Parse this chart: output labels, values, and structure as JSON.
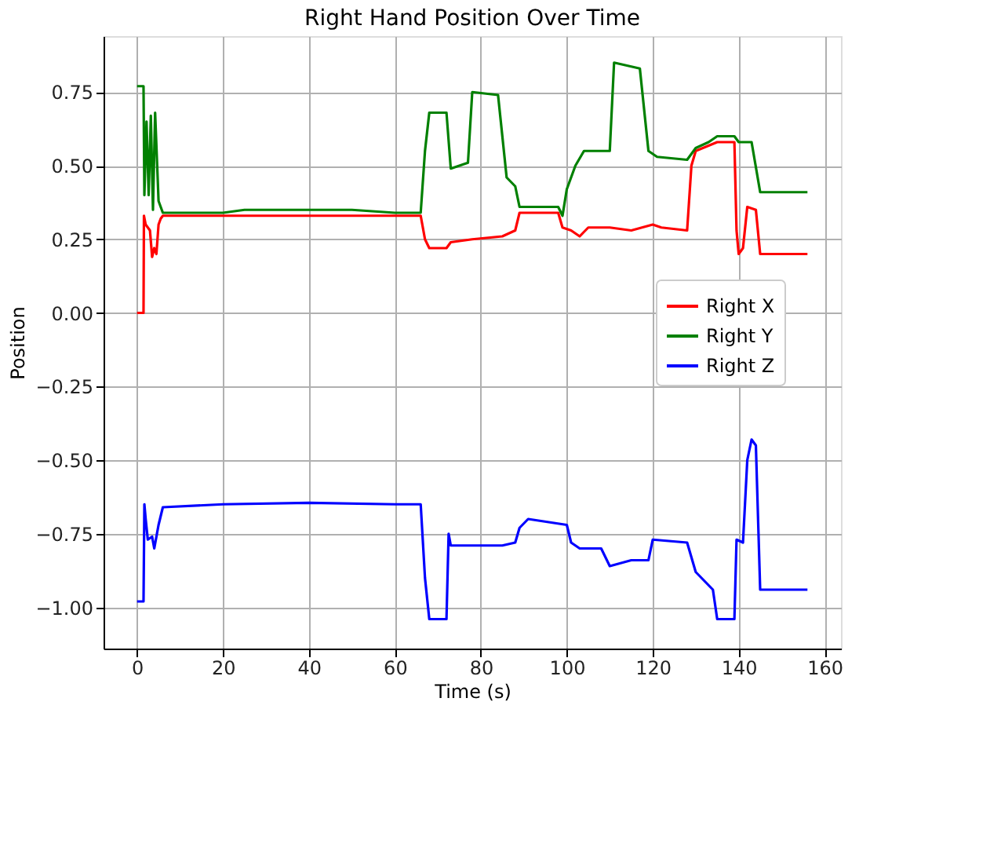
{
  "chart_data": {
    "type": "line",
    "title": "Right Hand Position Over Time",
    "xlabel": "Time (s)",
    "ylabel": "Position",
    "xlim": [
      -7.8,
      163.8
    ],
    "ylim": [
      -1.14,
      0.94
    ],
    "xticks": [
      0,
      20,
      40,
      60,
      80,
      100,
      120,
      140,
      160
    ],
    "yticks": [
      {
        "value": -1.0,
        "label": "−1.00"
      },
      {
        "value": -0.75,
        "label": "−0.75"
      },
      {
        "value": -0.5,
        "label": "−0.50"
      },
      {
        "value": -0.25,
        "label": "−0.25"
      },
      {
        "value": 0.0,
        "label": "0.00"
      },
      {
        "value": 0.25,
        "label": "0.25"
      },
      {
        "value": 0.5,
        "label": "0.50"
      },
      {
        "value": 0.75,
        "label": "0.75"
      }
    ],
    "grid": true,
    "legend": "right",
    "line_style": "solid",
    "marker": "none",
    "series": [
      {
        "name": "Right X",
        "color": "#ff0000",
        "x": [
          0,
          1.5,
          1.6,
          2,
          3,
          3.5,
          4,
          4.5,
          5,
          5.5,
          6,
          20,
          30,
          40,
          50,
          60,
          66,
          67,
          68,
          72,
          73,
          78,
          85,
          88,
          89,
          98,
          99,
          101,
          103,
          105,
          110,
          115,
          120,
          122,
          128,
          129,
          130,
          135,
          139,
          139.5,
          140,
          141,
          142,
          144,
          145,
          156
        ],
        "values": [
          0,
          0,
          0.33,
          0.3,
          0.28,
          0.19,
          0.22,
          0.2,
          0.3,
          0.32,
          0.33,
          0.33,
          0.33,
          0.33,
          0.33,
          0.33,
          0.33,
          0.25,
          0.22,
          0.22,
          0.24,
          0.25,
          0.26,
          0.28,
          0.34,
          0.34,
          0.29,
          0.28,
          0.26,
          0.29,
          0.29,
          0.28,
          0.3,
          0.29,
          0.28,
          0.5,
          0.55,
          0.58,
          0.58,
          0.28,
          0.2,
          0.22,
          0.36,
          0.35,
          0.2,
          0.2
        ]
      },
      {
        "name": "Right Y",
        "color": "#008000",
        "x": [
          0,
          1.5,
          1.7,
          2.2,
          2.7,
          3.2,
          3.7,
          4.2,
          5,
          6,
          20,
          25,
          36,
          50,
          60,
          66,
          67,
          68,
          72,
          73,
          77,
          78,
          84,
          86,
          88,
          89,
          98,
          99,
          100,
          102,
          104,
          110,
          111,
          117,
          119,
          121,
          128,
          130,
          133,
          135,
          139,
          140,
          143,
          145,
          156
        ],
        "values": [
          0.77,
          0.77,
          0.4,
          0.65,
          0.4,
          0.67,
          0.35,
          0.68,
          0.38,
          0.34,
          0.34,
          0.35,
          0.35,
          0.35,
          0.34,
          0.34,
          0.55,
          0.68,
          0.68,
          0.49,
          0.51,
          0.75,
          0.74,
          0.46,
          0.43,
          0.36,
          0.36,
          0.33,
          0.42,
          0.5,
          0.55,
          0.55,
          0.85,
          0.83,
          0.55,
          0.53,
          0.52,
          0.56,
          0.58,
          0.6,
          0.6,
          0.58,
          0.58,
          0.41,
          0.41
        ]
      },
      {
        "name": "Right Z",
        "color": "#0000ff",
        "x": [
          0,
          1.5,
          1.7,
          2,
          2.5,
          3.5,
          4,
          5,
          6,
          20,
          40,
          60,
          66,
          67,
          68,
          72,
          72.5,
          73,
          85,
          88,
          89,
          91,
          100,
          101,
          103,
          108,
          110,
          115,
          119,
          120,
          128,
          130,
          134,
          135,
          139,
          139.5,
          141,
          142,
          143,
          144,
          145,
          156
        ],
        "values": [
          -0.98,
          -0.98,
          -0.65,
          -0.7,
          -0.77,
          -0.76,
          -0.8,
          -0.72,
          -0.66,
          -0.65,
          -0.645,
          -0.65,
          -0.65,
          -0.9,
          -1.04,
          -1.04,
          -0.75,
          -0.79,
          -0.79,
          -0.78,
          -0.73,
          -0.7,
          -0.72,
          -0.78,
          -0.8,
          -0.8,
          -0.86,
          -0.84,
          -0.84,
          -0.77,
          -0.78,
          -0.88,
          -0.94,
          -1.04,
          -1.04,
          -0.77,
          -0.78,
          -0.5,
          -0.43,
          -0.45,
          -0.94,
          -0.94
        ]
      }
    ]
  }
}
